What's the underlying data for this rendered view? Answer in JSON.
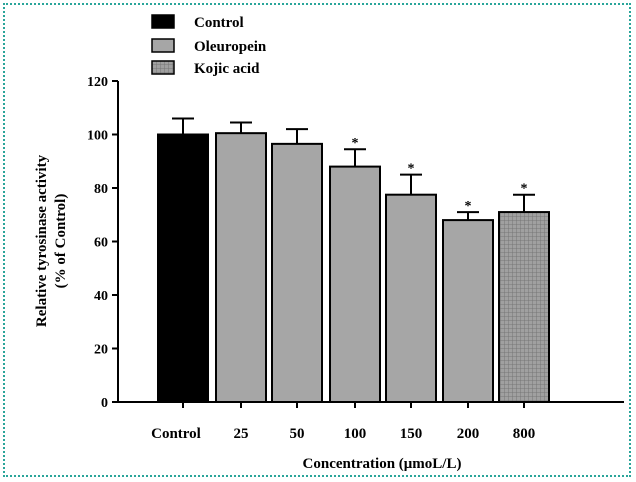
{
  "chart_data": {
    "type": "bar",
    "categories": [
      "Control",
      "25",
      "50",
      "100",
      "150",
      "200",
      "800"
    ],
    "values": [
      100,
      100.5,
      96.5,
      88,
      77.5,
      68,
      71
    ],
    "errors": [
      6,
      4,
      5.5,
      6.5,
      7.5,
      3,
      6.5
    ],
    "significant": [
      false,
      false,
      false,
      true,
      true,
      true,
      true
    ],
    "significance_marker": "*",
    "groups": [
      0,
      1,
      1,
      1,
      1,
      1,
      2
    ],
    "legend": [
      "Control",
      "Oleuropein",
      "Kojic acid"
    ],
    "legend_position": "top-left",
    "colors": [
      "#000000",
      "#a6a6a6",
      "#9c9c9c"
    ],
    "xlabel": "Concentration (μmoL/L)",
    "ylabel": [
      "Relative tyrosinase activity",
      "(% of Control)"
    ],
    "ylim": [
      0,
      120
    ],
    "yticks": [
      "0",
      "20",
      "40",
      "60",
      "80",
      "100",
      "120"
    ],
    "grid": false
  }
}
